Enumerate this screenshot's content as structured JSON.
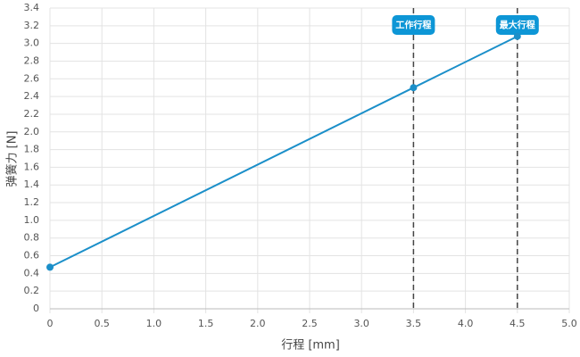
{
  "chart_data": {
    "type": "line",
    "xlabel": "行程 [mm]",
    "ylabel": "弹簧力 [N]",
    "x": [
      0,
      3.5,
      4.5
    ],
    "values": [
      0.47,
      2.5,
      3.08
    ],
    "color": "#1b8fc9",
    "xlim": [
      0,
      5
    ],
    "ylim": [
      0,
      3.4
    ],
    "xticks": [
      0,
      0.5,
      {
        "value": 1,
        "label": "1.0"
      },
      1.5,
      {
        "value": 2,
        "label": "2.0"
      },
      2.5,
      {
        "value": 3,
        "label": "3.0"
      },
      3.5,
      {
        "value": 4,
        "label": "4.0"
      },
      4.5,
      {
        "value": 5,
        "label": "5.0"
      }
    ],
    "yticks": [
      0,
      0.2,
      0.4,
      0.6,
      0.8,
      {
        "value": 1,
        "label": "1.0"
      },
      1.2,
      1.4,
      1.6,
      1.8,
      {
        "value": 2,
        "label": "2.0"
      },
      2.2,
      2.4,
      2.6,
      2.8,
      {
        "value": 3,
        "label": "3.0"
      },
      3.2,
      3.4
    ],
    "grid": true,
    "annotations": [
      {
        "x": 3.5,
        "label": "工作行程"
      },
      {
        "x": 4.5,
        "label": "最大行程"
      }
    ]
  }
}
